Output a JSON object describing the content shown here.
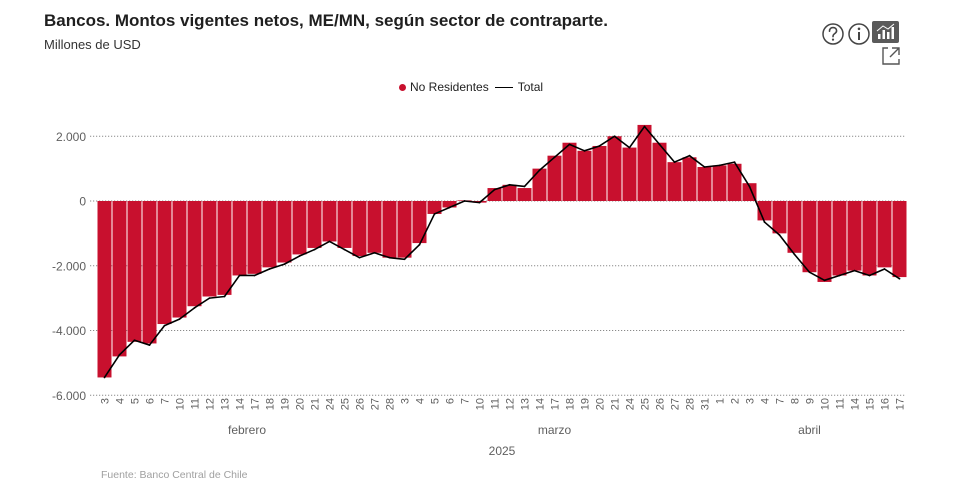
{
  "source": "Fuente: Banco Central de Chile",
  "icons": [
    "help-icon",
    "info-icon",
    "chart-table-toggle-icon",
    "expand-icon"
  ],
  "chart_data": {
    "type": "bar",
    "title": "Bancos. Montos vigentes netos, ME/MN, según sector de contraparte.",
    "subtitle": "Millones de USD",
    "ylim": [
      -6000,
      2000
    ],
    "y_ticks": [
      2000,
      0,
      -2000,
      -4000,
      -6000
    ],
    "y_tick_labels": [
      "2.000",
      "0",
      "-2.000",
      "-4.000",
      "-6.000"
    ],
    "grid": true,
    "legend_position": "top-center",
    "x_axis": {
      "year": "2025",
      "months": [
        {
          "label": "febrero",
          "days": [
            "3",
            "4",
            "5",
            "6",
            "7",
            "10",
            "11",
            "12",
            "13",
            "14",
            "17",
            "18",
            "19",
            "20",
            "21",
            "24",
            "25",
            "26",
            "27",
            "28"
          ]
        },
        {
          "label": "marzo",
          "days": [
            "3",
            "4",
            "5",
            "6",
            "7",
            "10",
            "11",
            "12",
            "13",
            "14",
            "17",
            "18",
            "19",
            "20",
            "21",
            "24",
            "25",
            "26",
            "27",
            "28",
            "31"
          ]
        },
        {
          "label": "abril",
          "days": [
            "1",
            "2",
            "3",
            "4",
            "7",
            "8",
            "9",
            "10",
            "11",
            "14",
            "15",
            "16",
            "17"
          ]
        }
      ]
    },
    "series": [
      {
        "name": "No Residentes",
        "type": "bar",
        "color": "#c8102e",
        "values": [
          -5450,
          -4800,
          -4350,
          -4400,
          -3800,
          -3600,
          -3250,
          -2950,
          -2900,
          -2300,
          -2250,
          -2050,
          -1900,
          -1650,
          -1450,
          -1250,
          -1450,
          -1700,
          -1600,
          -1750,
          -1750,
          -1300,
          -400,
          -200,
          20,
          -50,
          400,
          500,
          400,
          1000,
          1400,
          1800,
          1550,
          1700,
          2000,
          1650,
          2350,
          1800,
          1200,
          1350,
          1050,
          1100,
          1150,
          550,
          -600,
          -1000,
          -1600,
          -2200,
          -2500,
          -2300,
          -2150,
          -2300,
          -2050,
          -2350
        ]
      },
      {
        "name": "Total",
        "type": "line",
        "color": "#000000",
        "values": [
          -5450,
          -4750,
          -4300,
          -4450,
          -3850,
          -3650,
          -3300,
          -3000,
          -2950,
          -2300,
          -2300,
          -2100,
          -1950,
          -1700,
          -1500,
          -1250,
          -1500,
          -1750,
          -1600,
          -1750,
          -1800,
          -1350,
          -400,
          -200,
          0,
          -50,
          350,
          500,
          450,
          950,
          1350,
          1750,
          1550,
          1700,
          2000,
          1650,
          2300,
          1750,
          1200,
          1400,
          1050,
          1100,
          1200,
          450,
          -650,
          -1050,
          -1650,
          -2200,
          -2450,
          -2300,
          -2150,
          -2300,
          -2100,
          -2400
        ]
      }
    ]
  }
}
